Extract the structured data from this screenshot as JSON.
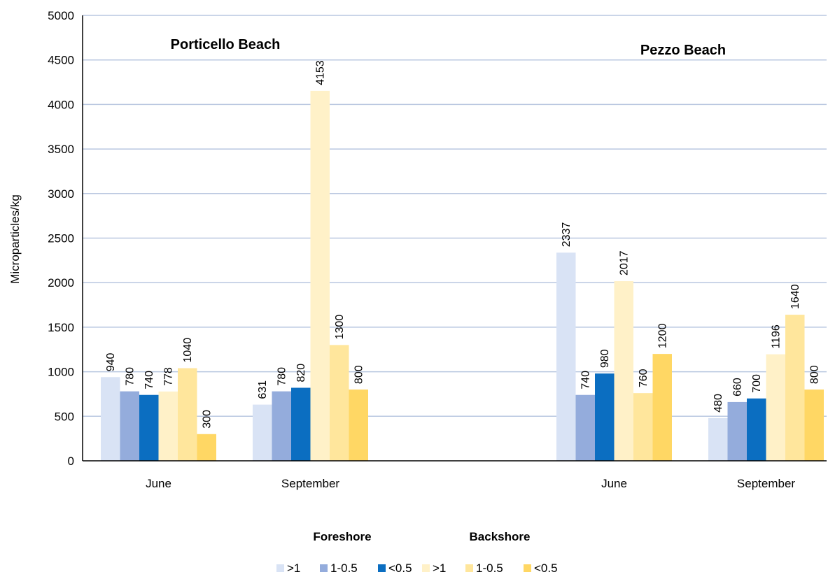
{
  "chart_data": {
    "type": "bar",
    "ylabel": "Microparticles/kg",
    "ylim": [
      0,
      5000
    ],
    "ytick_step": 500,
    "grid": true,
    "groups": [
      {
        "title": "Porticello Beach",
        "categories": [
          {
            "label": "June",
            "values": [
              940,
              780,
              740,
              778,
              1040,
              300
            ]
          },
          {
            "label": "September",
            "values": [
              631,
              780,
              820,
              4153,
              1300,
              800
            ]
          }
        ]
      },
      {
        "title": "Pezzo Beach",
        "categories": [
          {
            "label": "June",
            "values": [
              2337,
              740,
              980,
              2017,
              760,
              1200
            ]
          },
          {
            "label": "September",
            "values": [
              480,
              660,
              700,
              1196,
              1640,
              800
            ]
          }
        ]
      }
    ],
    "series": [
      {
        "name": ">1",
        "group": "Foreshore",
        "color": "#d9e3f5"
      },
      {
        "name": "1-0.5",
        "group": "Foreshore",
        "color": "#94acdc"
      },
      {
        "name": "<0.5",
        "group": "Foreshore",
        "color": "#0b6ec1"
      },
      {
        "name": ">1",
        "group": "Backshore",
        "color": "#fff1c8"
      },
      {
        "name": "1-0.5",
        "group": "Backshore",
        "color": "#ffe69c"
      },
      {
        "name": "<0.5",
        "group": "Backshore",
        "color": "#ffd764"
      }
    ],
    "legend_groups": [
      "Foreshore",
      "Backshore"
    ],
    "legend_position": "bottom",
    "colors": {
      "grid": "#b9c7e0",
      "axis": "#000000"
    }
  }
}
